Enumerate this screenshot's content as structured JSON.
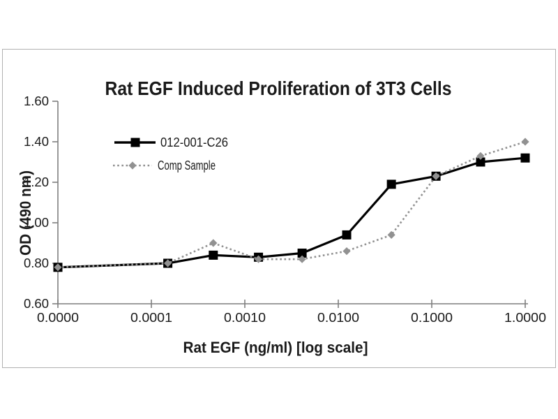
{
  "figure": {
    "background": "#ffffff",
    "frame_border_color": "#b0b0b0"
  },
  "chart_data": {
    "type": "line",
    "title": "Rat EGF Induced Proliferation of 3T3 Cells",
    "xlabel": "Rat EGF (ng/ml) [log scale]",
    "ylabel": "OD (490 nm)",
    "x_scale": "log",
    "grid": false,
    "legend_position": "inside-top-left",
    "x": [
      0,
      0.00015,
      0.00046,
      0.0014,
      0.0041,
      0.0123,
      0.037,
      0.111,
      0.333,
      1.0
    ],
    "x_tick_labels": [
      "0.0000",
      "0.0001",
      "0.0010",
      "0.0100",
      "0.1000",
      "1.0000"
    ],
    "y_ticks": [
      0.6,
      0.8,
      1.0,
      1.2,
      1.4,
      1.6
    ],
    "y_tick_labels": [
      "0.60",
      "0.80",
      "1.00",
      "1.20",
      "1.40",
      "1.60"
    ],
    "ylim": [
      0.6,
      1.6
    ],
    "axis_color": "#7f7f7f",
    "text_color": "#1a1a1a",
    "series": [
      {
        "name": "012-001-C26",
        "color": "#000000",
        "line_style": "solid",
        "marker": "square",
        "values": [
          0.78,
          0.8,
          0.84,
          0.83,
          0.85,
          0.94,
          1.19,
          1.23,
          1.3,
          1.32
        ]
      },
      {
        "name": "Comp Sample",
        "color": "#919191",
        "line_style": "dotted",
        "marker": "diamond",
        "values": [
          0.78,
          0.8,
          0.9,
          0.82,
          0.82,
          0.86,
          0.94,
          1.23,
          1.33,
          1.4
        ]
      }
    ]
  }
}
